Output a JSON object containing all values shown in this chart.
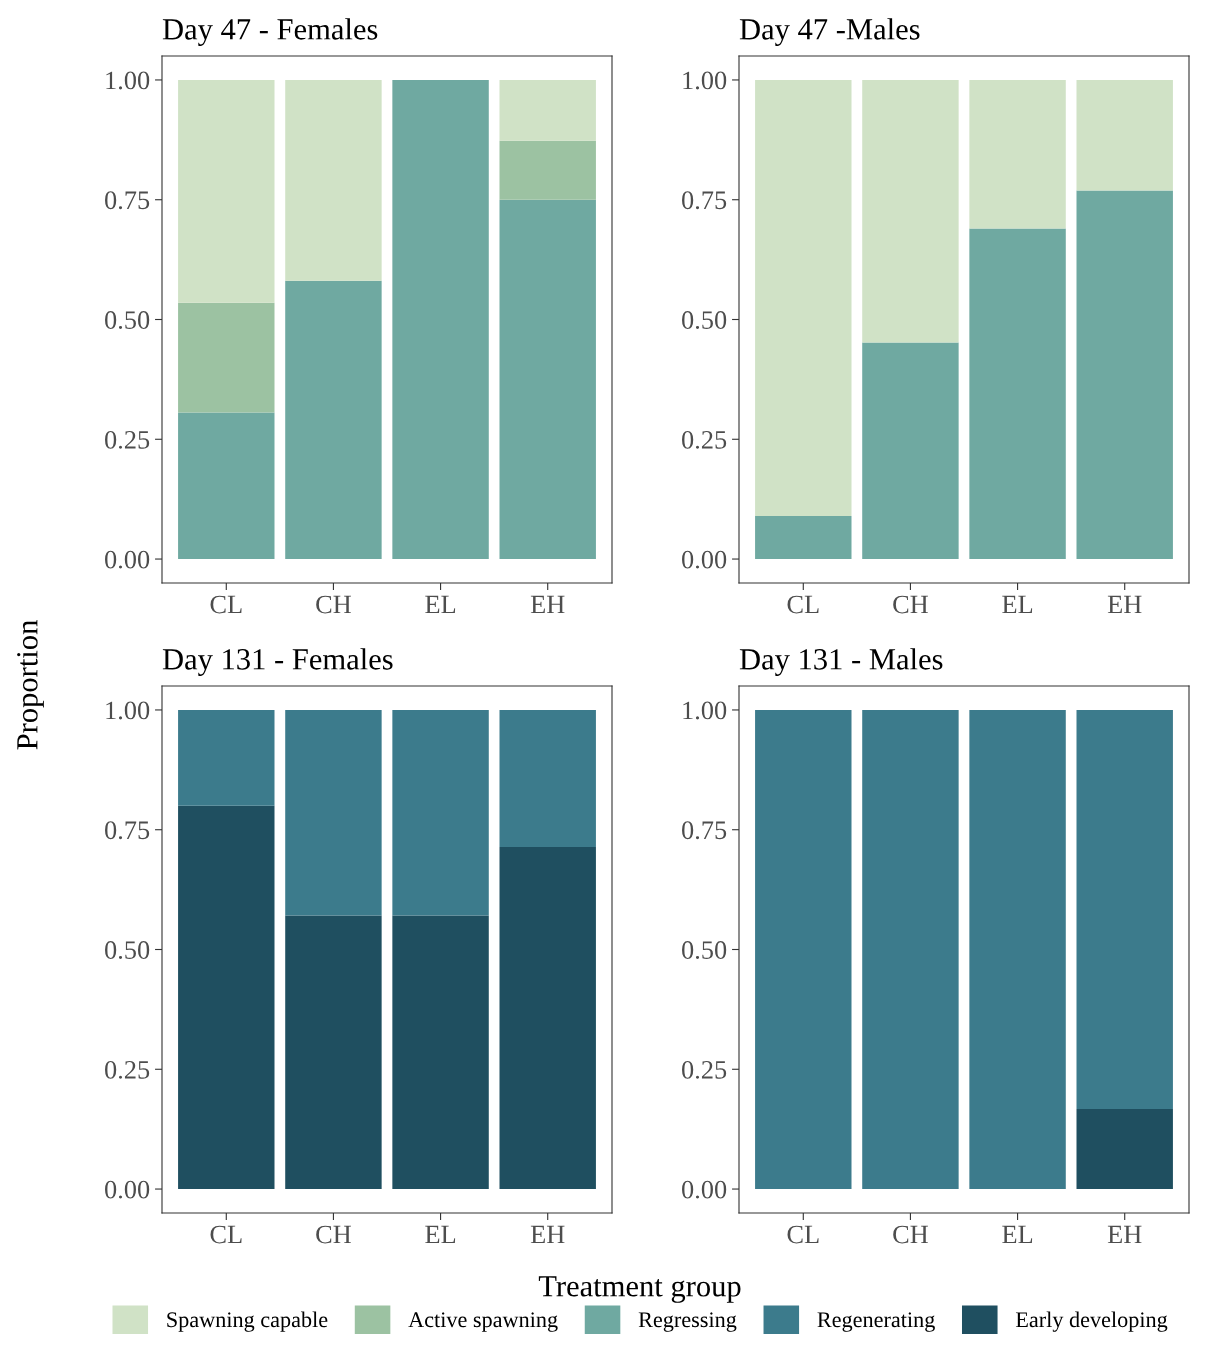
{
  "chart_data": [
    {
      "type": "bar",
      "stacked": true,
      "title": "Day 47 - Females",
      "ylabel": "Proportion",
      "xlabel": "Treatment group",
      "legend": "bottom",
      "grid": false,
      "categories": [
        "CL",
        "CH",
        "EL",
        "EH"
      ],
      "ylim": [
        -0.05,
        1.05
      ],
      "yticks": [
        {
          "value": 0,
          "label": "0.00"
        },
        {
          "value": 0.25,
          "label": "0.25"
        },
        {
          "value": 0.5,
          "label": "0.50"
        },
        {
          "value": 0.75,
          "label": "0.75"
        },
        {
          "value": 1,
          "label": "1.00"
        }
      ],
      "series": [
        {
          "name": "Regressing",
          "color": "#6fa9a1",
          "values": [
            0.306,
            0.581,
            1.0,
            0.75
          ]
        },
        {
          "name": "Active spawning",
          "color": "#9cc2a2",
          "values": [
            0.229,
            0,
            0,
            0.123
          ]
        },
        {
          "name": "Spawning capable",
          "color": "#d0e2c6",
          "values": [
            0.465,
            0.419,
            0,
            0.127
          ]
        }
      ]
    },
    {
      "type": "bar",
      "stacked": true,
      "title": "Day 47 -Males",
      "legend": "bottom",
      "grid": false,
      "categories": [
        "CL",
        "CH",
        "EL",
        "EH"
      ],
      "ylim": [
        -0.05,
        1.05
      ],
      "yticks": [
        {
          "value": 0,
          "label": "0.00"
        },
        {
          "value": 0.25,
          "label": "0.25"
        },
        {
          "value": 0.5,
          "label": "0.50"
        },
        {
          "value": 0.75,
          "label": "0.75"
        },
        {
          "value": 1,
          "label": "1.00"
        }
      ],
      "series": [
        {
          "name": "Regressing",
          "color": "#6fa9a1",
          "values": [
            0.09,
            0.452,
            0.69,
            0.769
          ]
        },
        {
          "name": "Spawning capable",
          "color": "#d0e2c6",
          "values": [
            0.91,
            0.548,
            0.31,
            0.231
          ]
        }
      ]
    },
    {
      "type": "bar",
      "stacked": true,
      "title": "Day 131 - Females",
      "legend": "bottom",
      "grid": false,
      "categories": [
        "CL",
        "CH",
        "EL",
        "EH"
      ],
      "ylim": [
        -0.05,
        1.05
      ],
      "yticks": [
        {
          "value": 0,
          "label": "0.00"
        },
        {
          "value": 0.25,
          "label": "0.25"
        },
        {
          "value": 0.5,
          "label": "0.50"
        },
        {
          "value": 0.75,
          "label": "0.75"
        },
        {
          "value": 1,
          "label": "1.00"
        }
      ],
      "series": [
        {
          "name": "Early developing",
          "color": "#1f4f60",
          "values": [
            0.8,
            0.571,
            0.571,
            0.714
          ]
        },
        {
          "name": "Regenerating",
          "color": "#3c7b8c",
          "values": [
            0.2,
            0.429,
            0.429,
            0.286
          ]
        }
      ]
    },
    {
      "type": "bar",
      "stacked": true,
      "title": "Day 131 - Males",
      "legend": "bottom",
      "grid": false,
      "categories": [
        "CL",
        "CH",
        "EL",
        "EH"
      ],
      "ylim": [
        -0.05,
        1.05
      ],
      "yticks": [
        {
          "value": 0,
          "label": "0.00"
        },
        {
          "value": 0.25,
          "label": "0.25"
        },
        {
          "value": 0.5,
          "label": "0.50"
        },
        {
          "value": 0.75,
          "label": "0.75"
        },
        {
          "value": 1,
          "label": "1.00"
        }
      ],
      "series": [
        {
          "name": "Early developing",
          "color": "#1f4f60",
          "values": [
            0,
            0,
            0,
            0.167
          ]
        },
        {
          "name": "Regenerating",
          "color": "#3c7b8c",
          "values": [
            1.0,
            1.0,
            1.0,
            0.833
          ]
        }
      ]
    }
  ]
}
